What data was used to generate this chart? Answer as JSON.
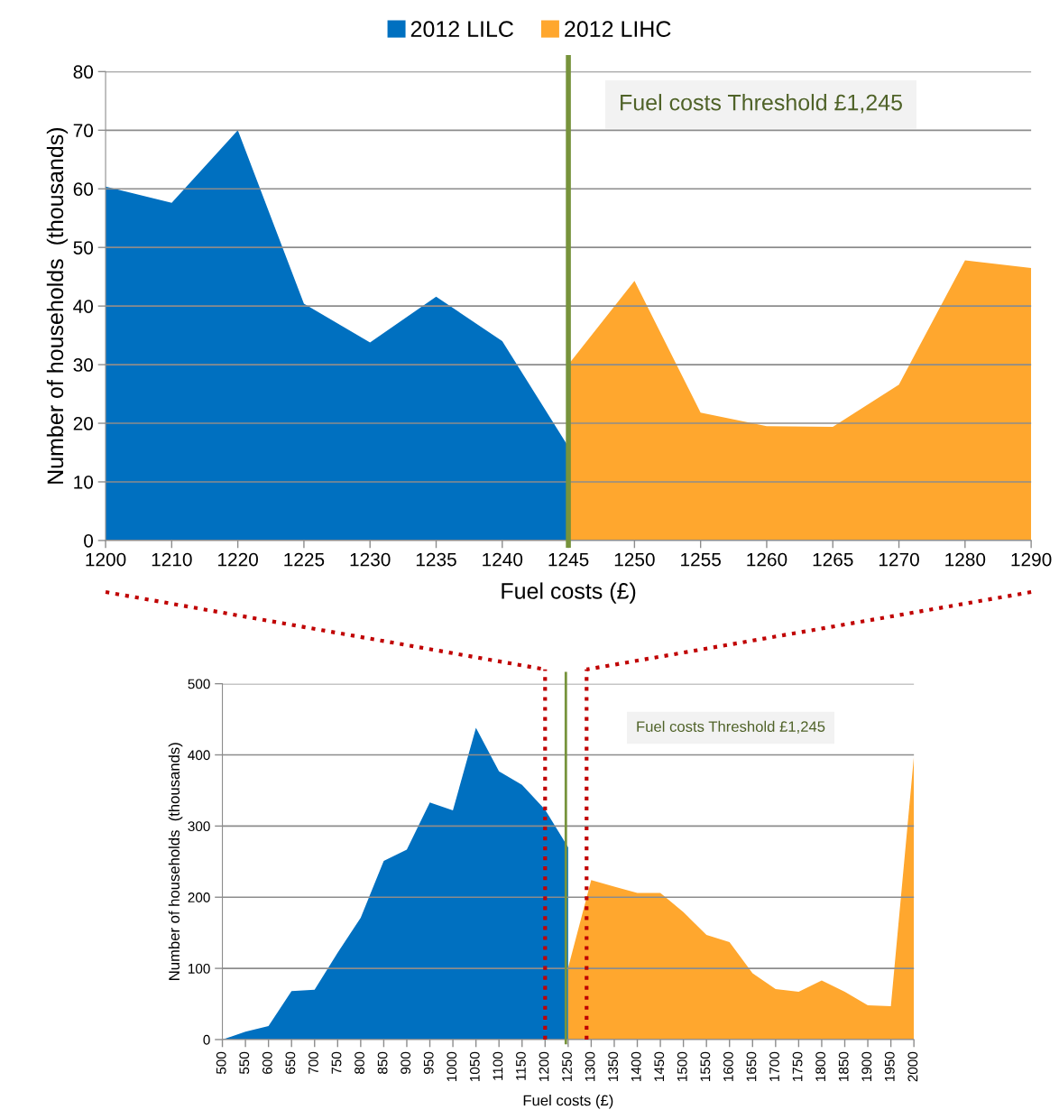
{
  "chart_data": [
    {
      "type": "area",
      "xlabel": "Fuel costs (£)",
      "ylabel": "Number of households  (thousands)",
      "categories": [
        "1200",
        "1210",
        "1220",
        "1225",
        "1230",
        "1235",
        "1240",
        "1245",
        "1250",
        "1255",
        "1260",
        "1265",
        "1270",
        "1280",
        "1290"
      ],
      "series": [
        {
          "name": "2012 LILC",
          "color": "#0070c0",
          "values": [
            60.4,
            57.6,
            70,
            40.4,
            33.8,
            41.6,
            34.0,
            16,
            null,
            null,
            null,
            null,
            null,
            null,
            null
          ]
        },
        {
          "name": "2012 LIHC",
          "color": "#ffa72e",
          "values": [
            null,
            null,
            null,
            null,
            null,
            null,
            null,
            30,
            44.3,
            21.8,
            19.5,
            19.4,
            26.6,
            47.8,
            46.5
          ]
        }
      ],
      "ylim": [
        0,
        80
      ],
      "yticks": [
        0,
        10,
        20,
        30,
        40,
        50,
        60,
        70,
        80
      ],
      "grid": "y",
      "legend": "top",
      "ref_lines": [
        {
          "axis": "x",
          "value": "1245",
          "color": "#77933c"
        }
      ],
      "annotations": [
        "Fuel costs Threshold £1,245"
      ]
    },
    {
      "type": "area",
      "xlabel": "Fuel costs (£)",
      "ylabel": "Number of households  (thousands)",
      "x": [
        500,
        550,
        600,
        650,
        700,
        750,
        800,
        850,
        900,
        950,
        1000,
        1050,
        1100,
        1150,
        1200,
        1250,
        1300,
        1350,
        1400,
        1450,
        1500,
        1550,
        1600,
        1650,
        1700,
        1750,
        1800,
        1850,
        1900,
        1950,
        2000
      ],
      "series": [
        {
          "color": "#0070c0",
          "values": [
            0,
            11,
            19,
            68,
            70,
            122,
            171,
            251,
            267,
            333,
            322,
            438,
            377,
            358,
            323,
            270,
            null,
            null,
            null,
            null,
            null,
            null,
            null,
            null,
            null,
            null,
            null,
            null,
            null,
            null,
            null
          ]
        },
        {
          "color": "#ffa72e",
          "values": [
            null,
            null,
            null,
            null,
            null,
            null,
            null,
            null,
            null,
            null,
            null,
            null,
            null,
            null,
            null,
            101,
            224,
            215,
            206,
            206,
            179,
            147,
            137,
            93,
            71,
            67,
            83,
            67,
            48,
            47,
            398
          ]
        }
      ],
      "xlim": [
        500,
        2000
      ],
      "xticks": [
        500,
        550,
        600,
        650,
        700,
        750,
        800,
        850,
        900,
        950,
        1000,
        1050,
        1100,
        1150,
        1200,
        1250,
        1300,
        1350,
        1400,
        1450,
        1500,
        1550,
        1600,
        1650,
        1700,
        1750,
        1800,
        1850,
        1900,
        1950,
        2000
      ],
      "ylim": [
        0,
        500
      ],
      "yticks": [
        0,
        100,
        200,
        300,
        400,
        500
      ],
      "grid": "y",
      "ref_lines": [
        {
          "axis": "x",
          "value": 1245,
          "color": "#77933c"
        },
        {
          "axis": "x",
          "value": 1200,
          "color": "#c00000",
          "line_style": "dotted"
        },
        {
          "axis": "x",
          "value": 1290,
          "color": "#c00000",
          "line_style": "dotted"
        }
      ],
      "annotations": [
        "Fuel costs Threshold £1,245"
      ]
    }
  ]
}
